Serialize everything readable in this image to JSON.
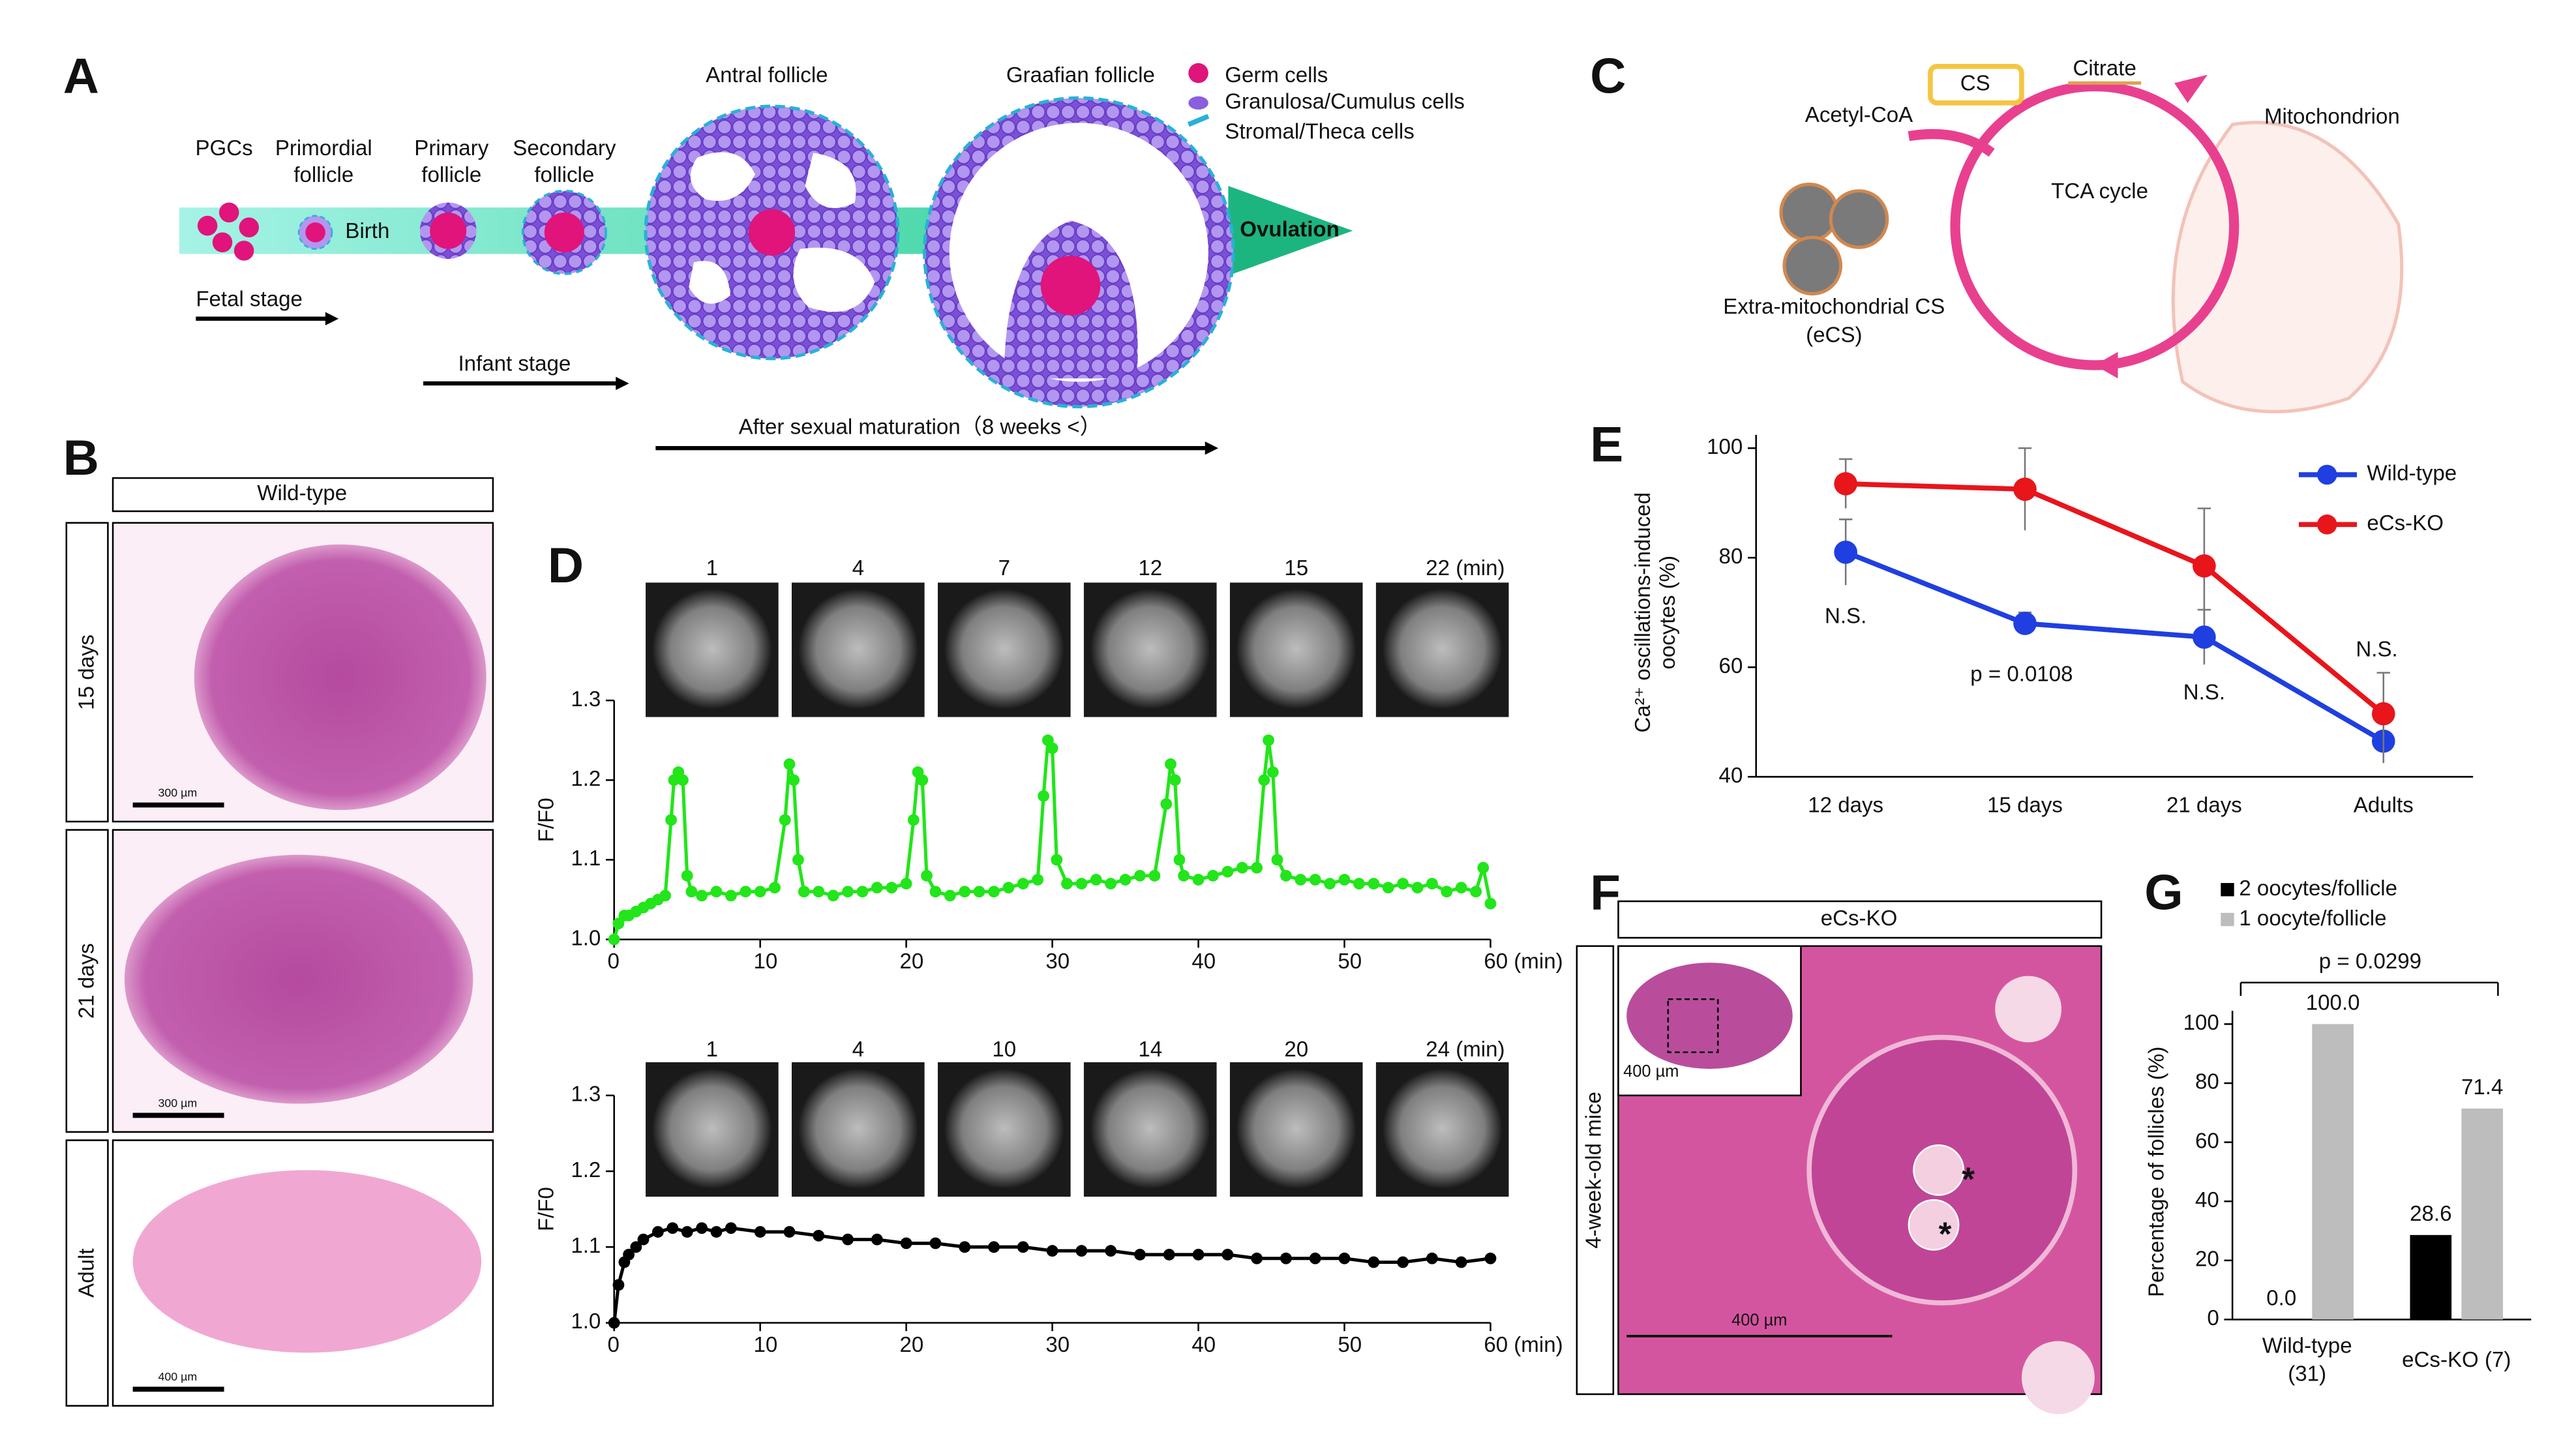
{
  "panel_labels": [
    "A",
    "B",
    "C",
    "D",
    "E",
    "F",
    "G"
  ],
  "panel_a": {
    "stages": [
      "PGCs",
      "Primordial follicle",
      "Primary follicle",
      "Secondary follicle",
      "Antral follicle",
      "Graafian follicle"
    ],
    "birth": "Birth",
    "ovulation": "Ovulation",
    "legend": [
      "Germ cells",
      "Granulosa/Cumulus cells",
      "Stromal/Theca cells"
    ],
    "timeline": [
      "Fetal stage",
      "Infant stage",
      "After sexual maturation（8 weeks <）"
    ]
  },
  "panel_b": {
    "header": "Wild-type",
    "rows": [
      "15 days",
      "21 days",
      "Adult"
    ],
    "scale_bars": [
      "300 µm",
      "300 µm",
      "400 µm"
    ]
  },
  "panel_c": {
    "enzyme": "CS",
    "product": "Citrate",
    "substrate": "Acetyl-CoA",
    "organelle": "Mitochondrion",
    "cycle": "TCA cycle",
    "extra": "Extra-mitochondrial CS (eCS)"
  },
  "panel_f": {
    "header": "eCs-KO",
    "side": "4-week-old mice",
    "scale_bars": [
      "400 µm",
      "400 µm"
    ]
  },
  "chart_data": [
    {
      "type": "line",
      "y_label": "F/F0",
      "frame_labels": [
        "1",
        "4",
        "7",
        "12",
        "15",
        "22 (min)"
      ],
      "color": "#22e51a",
      "x": [
        0,
        0.3,
        0.7,
        1,
        1.5,
        2,
        2.5,
        3,
        3.5,
        3.9,
        4.1,
        4.4,
        4.7,
        5,
        5.3,
        6,
        7,
        8,
        9,
        10,
        11,
        11.7,
        12,
        12.3,
        12.6,
        13,
        14,
        15,
        16,
        17,
        18,
        19,
        20,
        20.5,
        20.8,
        21.1,
        21.4,
        22,
        23,
        24,
        25,
        26,
        27,
        28,
        29,
        29.4,
        29.7,
        30,
        30.3,
        31,
        32,
        33,
        34,
        35,
        36,
        37,
        37.8,
        38.1,
        38.4,
        38.7,
        39,
        40,
        41,
        42,
        43,
        44,
        44.5,
        44.8,
        45.1,
        45.4,
        46,
        47,
        48,
        49,
        50,
        51,
        52,
        53,
        54,
        55,
        56,
        57,
        58,
        59,
        59.5,
        60
      ],
      "values": [
        1.0,
        1.02,
        1.03,
        1.03,
        1.035,
        1.04,
        1.045,
        1.05,
        1.055,
        1.15,
        1.2,
        1.21,
        1.2,
        1.08,
        1.06,
        1.055,
        1.06,
        1.055,
        1.06,
        1.06,
        1.065,
        1.15,
        1.22,
        1.2,
        1.1,
        1.06,
        1.06,
        1.055,
        1.06,
        1.06,
        1.065,
        1.065,
        1.07,
        1.15,
        1.21,
        1.2,
        1.08,
        1.06,
        1.055,
        1.06,
        1.06,
        1.06,
        1.065,
        1.07,
        1.075,
        1.18,
        1.25,
        1.24,
        1.1,
        1.07,
        1.07,
        1.075,
        1.07,
        1.075,
        1.08,
        1.08,
        1.17,
        1.22,
        1.2,
        1.1,
        1.08,
        1.075,
        1.08,
        1.085,
        1.09,
        1.09,
        1.2,
        1.25,
        1.21,
        1.1,
        1.08,
        1.075,
        1.075,
        1.07,
        1.075,
        1.07,
        1.07,
        1.065,
        1.07,
        1.065,
        1.07,
        1.06,
        1.065,
        1.06,
        1.09,
        1.045
      ],
      "xlim": [
        0,
        60
      ],
      "xticks": [
        0,
        10,
        20,
        30,
        40,
        50,
        {
          "value": 60,
          "label": "60 (min)"
        }
      ],
      "ylim": [
        1.0,
        1.3
      ],
      "yticks": [
        {
          "value": 1.0,
          "label": "1.0"
        },
        1.1,
        1.2,
        1.3
      ]
    },
    {
      "type": "line",
      "y_label": "F/F0",
      "frame_labels": [
        "1",
        "4",
        "10",
        "14",
        "20",
        "24 (min)"
      ],
      "color": "#000000",
      "x": [
        0,
        0.3,
        0.7,
        1,
        1.5,
        2,
        3,
        4,
        5,
        6,
        7,
        8,
        10,
        12,
        14,
        16,
        18,
        20,
        22,
        24,
        26,
        28,
        30,
        32,
        34,
        36,
        38,
        40,
        42,
        44,
        46,
        48,
        50,
        52,
        54,
        56,
        58,
        60
      ],
      "values": [
        1.0,
        1.05,
        1.08,
        1.09,
        1.1,
        1.11,
        1.12,
        1.125,
        1.12,
        1.125,
        1.12,
        1.125,
        1.12,
        1.12,
        1.115,
        1.11,
        1.11,
        1.105,
        1.105,
        1.1,
        1.1,
        1.1,
        1.095,
        1.095,
        1.095,
        1.09,
        1.09,
        1.09,
        1.09,
        1.085,
        1.085,
        1.085,
        1.085,
        1.08,
        1.08,
        1.085,
        1.08,
        1.085
      ],
      "xlim": [
        0,
        60
      ],
      "xticks": [
        0,
        10,
        20,
        30,
        40,
        50,
        {
          "value": 60,
          "label": "60 (min)"
        }
      ],
      "ylim": [
        1.0,
        1.3
      ],
      "yticks": [
        {
          "value": 1.0,
          "label": "1.0"
        },
        1.1,
        1.2,
        1.3
      ]
    },
    {
      "type": "errorline",
      "y_label": "Ca²⁺ oscillations-induced oocytes (%)",
      "categories": [
        "12 days",
        "15 days",
        "21 days",
        "Adults"
      ],
      "series": [
        {
          "name": "Wild-type",
          "color": "#1f3fe0",
          "values": [
            81,
            68,
            65.5,
            46.5
          ],
          "errors": [
            6,
            2,
            5,
            4
          ]
        },
        {
          "name": "eCs-KO",
          "color": "#e8151b",
          "values": [
            93.5,
            92.5,
            78.5,
            51.5
          ],
          "errors": [
            4.5,
            7.5,
            10.5,
            7.5
          ]
        }
      ],
      "annotations": [
        "N.S.",
        "p = 0.0108",
        "N.S.",
        "N.S."
      ],
      "ylim": [
        40,
        100
      ],
      "yticks": [
        40,
        60,
        80,
        100
      ],
      "legend": "upper right"
    },
    {
      "type": "bar",
      "y_label": "Percentage of follicles (%)",
      "categories": [
        "Wild-type (31)",
        "eCs-KO (7)"
      ],
      "series": [
        {
          "name": "2 oocytes/follicle",
          "color": "#000000",
          "values": [
            0,
            28.6
          ],
          "value_labels": [
            "0.0",
            "28.6"
          ]
        },
        {
          "name": "1 oocyte/follicle",
          "color": "#bdbdbd",
          "values": [
            100,
            71.4
          ],
          "value_labels": [
            "100.0",
            "71.4"
          ]
        }
      ],
      "annotations": [
        "p = 0.0299"
      ],
      "ylim": [
        0,
        100
      ],
      "yticks": [
        0,
        20,
        40,
        60,
        80,
        100
      ],
      "legend": "upper left"
    }
  ]
}
